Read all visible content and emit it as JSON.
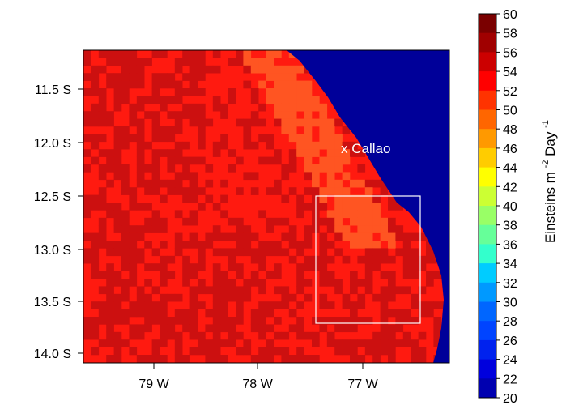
{
  "map": {
    "y_axis": {
      "ticks": [
        "11.5 S",
        "12.0 S",
        "12.5 S",
        "13.0 S",
        "13.5 S",
        "14.0 S"
      ]
    },
    "x_axis": {
      "ticks": [
        "79 W",
        "78 W",
        "77 W"
      ]
    },
    "land_color": "#000099",
    "sea_color_high": "#ff1a10",
    "sea_color_dark": "#cc1010",
    "sea_color_coast": "#ff5522",
    "marker": {
      "label": "x Callao"
    },
    "colorbar": {
      "min": 20,
      "max": 60,
      "tick_labels": [
        "60",
        "58",
        "56",
        "54",
        "52",
        "50",
        "48",
        "46",
        "44",
        "42",
        "40",
        "38",
        "36",
        "34",
        "32",
        "30",
        "28",
        "26",
        "24",
        "22",
        "20"
      ],
      "unit_label": "Einsteins m",
      "unit_sup1": "-2",
      "unit_mid": " Day",
      "unit_sup2": "-1"
    }
  }
}
